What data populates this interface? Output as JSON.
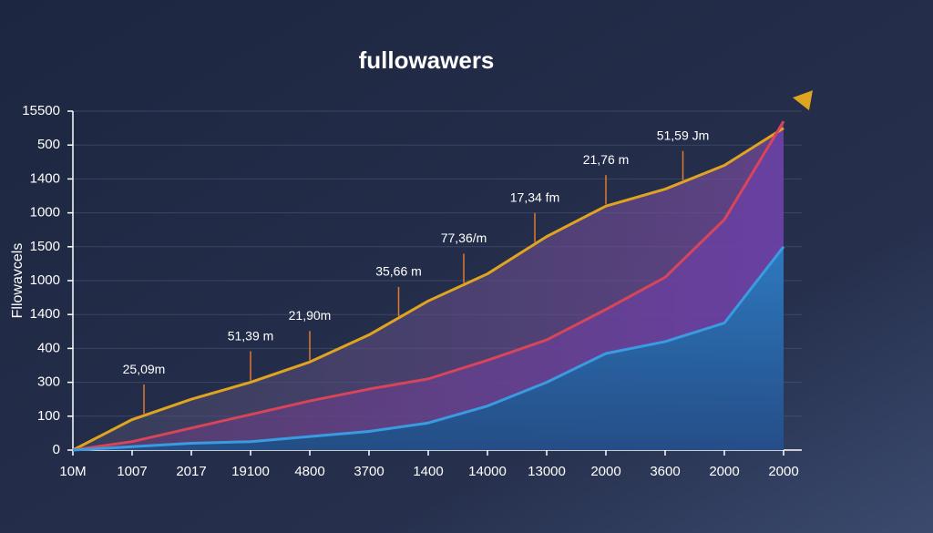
{
  "chart_data": {
    "type": "line",
    "title": "fullowawers",
    "y_label": "Fllowavcels",
    "categories": [
      "10M",
      "1007",
      "2017",
      "19100",
      "4800",
      "3700",
      "1400",
      "14000",
      "13000",
      "2000",
      "3600",
      "2000",
      "2000"
    ],
    "series": [
      {
        "name": "yellow",
        "color": "#e0a520",
        "values": [
          0,
          0.9,
          1.5,
          2.0,
          2.6,
          3.4,
          4.4,
          5.2,
          6.3,
          7.2,
          7.7,
          8.4,
          9.5
        ]
      },
      {
        "name": "red",
        "color": "#d8455a",
        "values": [
          0,
          0.25,
          0.65,
          1.05,
          1.45,
          1.8,
          2.1,
          2.65,
          3.25,
          4.15,
          5.1,
          6.8,
          9.7
        ]
      },
      {
        "name": "blue",
        "color": "#3a9be0",
        "values": [
          0,
          0.1,
          0.2,
          0.25,
          0.4,
          0.55,
          0.8,
          1.3,
          2.0,
          2.85,
          3.2,
          3.75,
          6.0
        ]
      }
    ],
    "ylim": [
      0,
      10
    ],
    "yticks": [
      0,
      {
        "value": 1,
        "label": "100"
      },
      {
        "value": 2,
        "label": "300"
      },
      {
        "value": 3,
        "label": "400"
      },
      {
        "value": 4,
        "label": "1400"
      },
      {
        "value": 5,
        "label": "1000"
      },
      {
        "value": 6,
        "label": "1500"
      },
      {
        "value": 7,
        "label": "1000"
      },
      {
        "value": 8,
        "label": "1400"
      },
      {
        "value": 9,
        "label": "500"
      },
      {
        "value": 10,
        "label": "15500"
      }
    ],
    "annotations": [
      "25,09m",
      "51,39 m",
      "21,90m",
      "35,66 m",
      "77,36/m",
      "17,34 fm",
      "21,76 m",
      "51,59 Jm"
    ],
    "grid": true
  }
}
